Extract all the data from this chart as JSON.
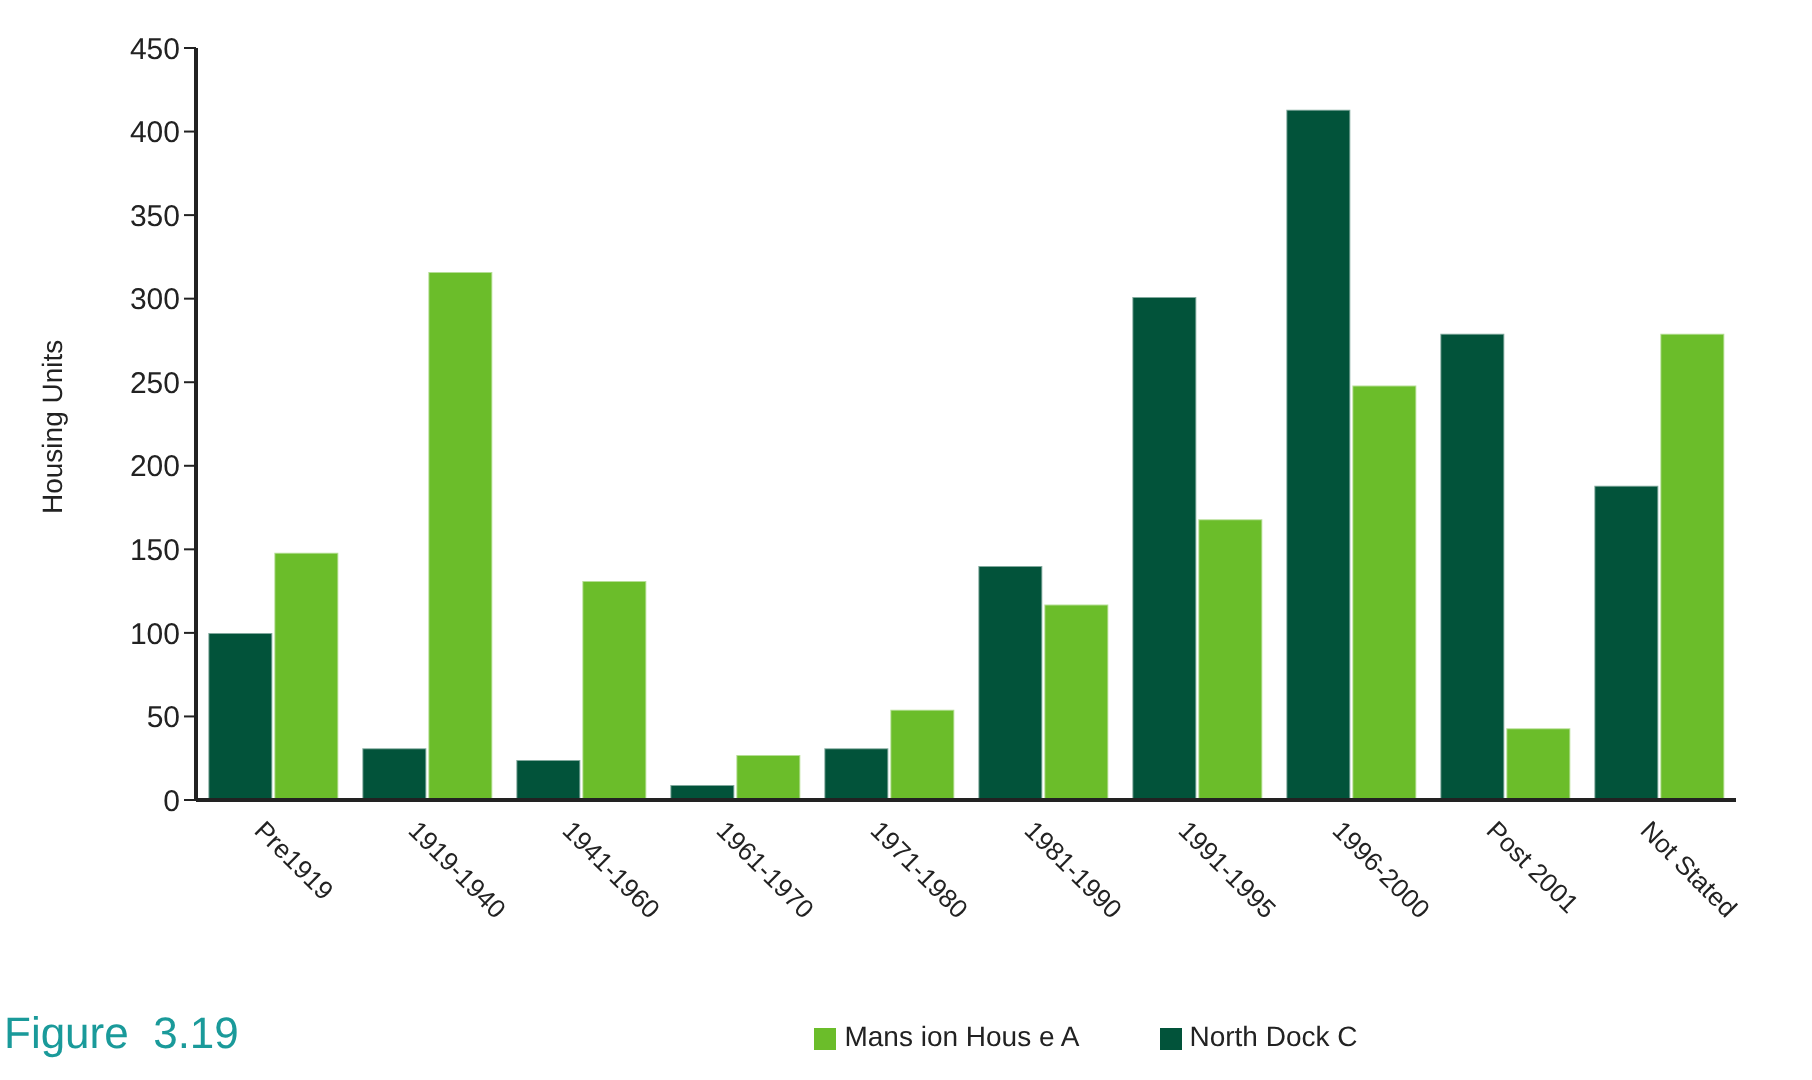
{
  "chart_data": {
    "type": "bar",
    "ylabel": "Housing Units",
    "annotations": [
      "Figure  3.19"
    ],
    "categories": [
      "Pre1919",
      "1919-1940",
      "1941-1960",
      "1961-1970",
      "1971-1980",
      "1981-1990",
      "1991-1995",
      "1996-2000",
      "Post 2001",
      "Not Stated"
    ],
    "series": [
      {
        "name": "North Dock C",
        "color": "#02533a",
        "values": [
          100,
          31,
          24,
          9,
          31,
          140,
          301,
          413,
          279,
          188
        ]
      },
      {
        "name": "Mans ion Hous e A",
        "color": "#6bbd2a",
        "values": [
          148,
          316,
          131,
          27,
          54,
          117,
          168,
          248,
          43,
          279
        ]
      }
    ],
    "ylim": [
      0,
      450
    ],
    "yticks": [
      0,
      50,
      100,
      150,
      200,
      250,
      300,
      350,
      400,
      450
    ],
    "grid": false,
    "legend": "bottom"
  }
}
